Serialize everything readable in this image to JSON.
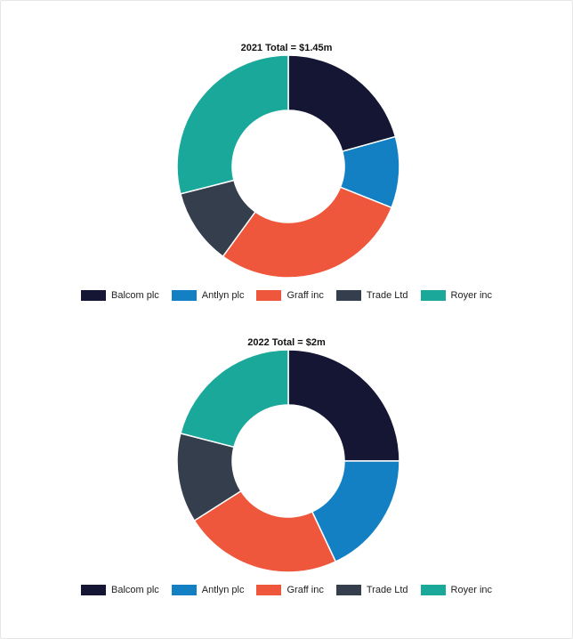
{
  "chart_data": [
    {
      "type": "pie",
      "title": "2021 Total = $1.45m",
      "categories": [
        "Balcom plc",
        "Antlyn plc",
        "Graff inc",
        "Trade Ltd",
        "Royer inc"
      ],
      "values": [
        0.3,
        0.15,
        0.42,
        0.16,
        0.42
      ],
      "colors": [
        "#141633",
        "#1380c4",
        "#ef573c",
        "#343e4d",
        "#19a89a"
      ],
      "donut": true,
      "legend": "bottom"
    },
    {
      "type": "pie",
      "title": "2022 Total = $2m",
      "categories": [
        "Balcom plc",
        "Antlyn plc",
        "Graff inc",
        "Trade Ltd",
        "Royer inc"
      ],
      "values": [
        0.5,
        0.36,
        0.46,
        0.26,
        0.42
      ],
      "colors": [
        "#141633",
        "#1380c4",
        "#ef573c",
        "#343e4d",
        "#19a89a"
      ],
      "donut": true,
      "legend": "bottom"
    }
  ]
}
